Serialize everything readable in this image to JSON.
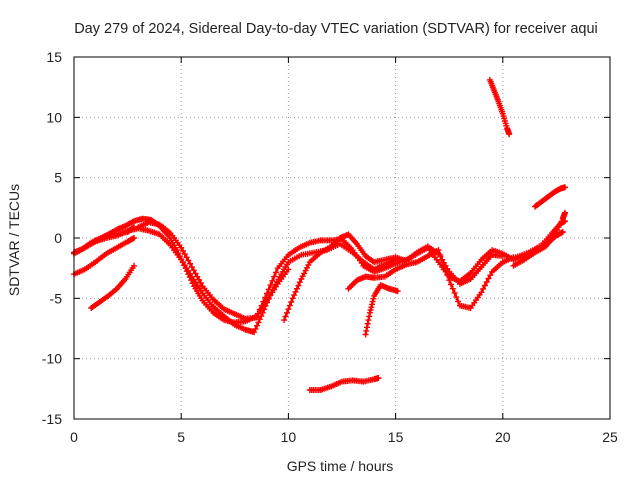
{
  "chart_data": {
    "type": "scatter",
    "title": "Day 279 of 2024, Sidereal Day-to-day VTEC variation (SDTVAR) for receiver aqui",
    "xlabel": "GPS time / hours",
    "ylabel": "SDTVAR / TECUs",
    "xlim": [
      0,
      25
    ],
    "ylim": [
      -15,
      15
    ],
    "xticks": [
      0,
      5,
      10,
      15,
      20,
      25
    ],
    "yticks": [
      -15,
      -10,
      -5,
      0,
      5,
      10,
      15
    ],
    "xtick_labels": [
      "0",
      "5",
      "10",
      "15",
      "20",
      "25"
    ],
    "ytick_labels": [
      "-15",
      "-10",
      "-5",
      "0",
      "5",
      "10",
      "15"
    ],
    "grid": true,
    "marker": "+",
    "series_color": "#ff0000",
    "series": [
      {
        "name": "arc1",
        "points": [
          [
            0,
            -1.2
          ],
          [
            0.4,
            -0.9
          ],
          [
            0.8,
            -0.4
          ],
          [
            1.2,
            -0.1
          ],
          [
            1.6,
            0.3
          ],
          [
            2.0,
            0.7
          ],
          [
            2.4,
            1.0
          ],
          [
            2.8,
            1.4
          ],
          [
            3.2,
            1.6
          ],
          [
            3.6,
            1.5
          ],
          [
            4.0,
            1.0
          ],
          [
            4.4,
            0.2
          ],
          [
            4.8,
            -1.0
          ],
          [
            5.2,
            -2.5
          ],
          [
            5.6,
            -4.0
          ],
          [
            6.0,
            -5.2
          ],
          [
            6.5,
            -6.2
          ],
          [
            7.0,
            -6.8
          ],
          [
            7.5,
            -7.0
          ],
          [
            8.0,
            -6.9
          ],
          [
            8.5,
            -6.5
          ],
          [
            9.0,
            -5.2
          ],
          [
            9.5,
            -3.8
          ],
          [
            10.0,
            -2.6
          ]
        ]
      },
      {
        "name": "arc2",
        "points": [
          [
            0,
            -1.3
          ],
          [
            0.5,
            -0.8
          ],
          [
            1.0,
            -0.3
          ],
          [
            1.5,
            0.0
          ],
          [
            2.0,
            0.2
          ],
          [
            2.5,
            0.6
          ],
          [
            3.0,
            0.8
          ],
          [
            3.5,
            0.6
          ],
          [
            4.0,
            0.3
          ],
          [
            4.5,
            -0.6
          ],
          [
            5.0,
            -1.8
          ],
          [
            5.5,
            -3.2
          ],
          [
            6.0,
            -4.6
          ],
          [
            6.5,
            -5.7
          ],
          [
            7.0,
            -6.5
          ],
          [
            7.5,
            -7.2
          ],
          [
            8.0,
            -7.6
          ],
          [
            8.4,
            -7.8
          ],
          [
            8.8,
            -6.2
          ],
          [
            9.2,
            -4.5
          ],
          [
            9.6,
            -3.2
          ],
          [
            10.0,
            -2.0
          ],
          [
            10.6,
            -1.4
          ],
          [
            11.2,
            -1.2
          ],
          [
            11.8,
            -1.0
          ],
          [
            12.4,
            -0.5
          ],
          [
            13.0,
            -1.2
          ],
          [
            13.5,
            -2.0
          ],
          [
            14.0,
            -2.6
          ],
          [
            14.5,
            -2.2
          ],
          [
            15.0,
            -1.8
          ]
        ]
      },
      {
        "name": "arc3",
        "points": [
          [
            0.6,
            -0.7
          ],
          [
            1.0,
            -0.2
          ],
          [
            1.5,
            0.2
          ],
          [
            2.0,
            0.3
          ],
          [
            2.5,
            0.5
          ],
          [
            2.8,
            0.9
          ]
        ]
      },
      {
        "name": "arc4",
        "points": [
          [
            0,
            -3.0
          ],
          [
            0.5,
            -2.6
          ],
          [
            1.0,
            -2.0
          ],
          [
            1.5,
            -1.3
          ],
          [
            2.0,
            -0.8
          ],
          [
            2.5,
            -0.3
          ],
          [
            2.8,
            0.0
          ]
        ]
      },
      {
        "name": "arc5",
        "points": [
          [
            0.8,
            -5.8
          ],
          [
            1.2,
            -5.3
          ],
          [
            1.6,
            -4.8
          ],
          [
            2.0,
            -4.2
          ],
          [
            2.4,
            -3.4
          ],
          [
            2.8,
            -2.3
          ]
        ]
      },
      {
        "name": "arc6",
        "points": [
          [
            3.0,
            0.9
          ],
          [
            3.5,
            1.3
          ],
          [
            4.0,
            1.1
          ],
          [
            4.5,
            0.4
          ],
          [
            5.0,
            -0.8
          ],
          [
            5.5,
            -2.4
          ],
          [
            6.0,
            -4.0
          ],
          [
            6.5,
            -5.1
          ],
          [
            7.0,
            -5.9
          ],
          [
            7.5,
            -6.3
          ],
          [
            8.0,
            -6.7
          ],
          [
            8.5,
            -6.6
          ],
          [
            9.0,
            -4.6
          ],
          [
            9.5,
            -2.5
          ],
          [
            10.0,
            -1.4
          ],
          [
            10.5,
            -0.8
          ],
          [
            11.0,
            -0.4
          ],
          [
            11.5,
            -0.2
          ],
          [
            12.0,
            -0.2
          ],
          [
            12.5,
            -0.1
          ],
          [
            13.0,
            -1.0
          ],
          [
            13.5,
            -2.3
          ],
          [
            14.0,
            -2.8
          ],
          [
            14.5,
            -2.5
          ],
          [
            15.0,
            -2.1
          ],
          [
            15.5,
            -1.8
          ],
          [
            16.0,
            -1.3
          ],
          [
            16.5,
            -0.8
          ],
          [
            17.0,
            -2.0
          ],
          [
            17.5,
            -3.2
          ],
          [
            18.0,
            -3.6
          ],
          [
            18.5,
            -2.9
          ],
          [
            19.0,
            -1.8
          ],
          [
            19.5,
            -1.0
          ],
          [
            20.0,
            -1.3
          ],
          [
            20.5,
            -1.8
          ],
          [
            21.0,
            -1.5
          ],
          [
            21.5,
            -1.0
          ],
          [
            22.0,
            -0.6
          ],
          [
            22.5,
            0.2
          ],
          [
            22.8,
            0.5
          ]
        ]
      },
      {
        "name": "arc7",
        "points": [
          [
            9.8,
            -6.8
          ],
          [
            10.2,
            -5.0
          ],
          [
            10.6,
            -3.4
          ],
          [
            11.0,
            -2.0
          ],
          [
            11.5,
            -1.2
          ],
          [
            12.0,
            -0.7
          ],
          [
            12.4,
            0.0
          ],
          [
            12.8,
            0.3
          ],
          [
            13.2,
            -0.5
          ],
          [
            13.6,
            -1.5
          ],
          [
            14.0,
            -2.0
          ],
          [
            14.5,
            -1.8
          ],
          [
            15.0,
            -1.6
          ],
          [
            15.5,
            -1.9
          ],
          [
            16.0,
            -1.2
          ],
          [
            16.5,
            -0.7
          ],
          [
            17.0,
            -1.3
          ],
          [
            17.5,
            -2.8
          ],
          [
            18.0,
            -3.8
          ],
          [
            18.5,
            -3.4
          ],
          [
            19.0,
            -2.4
          ],
          [
            19.5,
            -1.4
          ],
          [
            20.0,
            -1.5
          ]
        ]
      },
      {
        "name": "arc8",
        "points": [
          [
            12.8,
            -4.2
          ],
          [
            13.2,
            -3.5
          ],
          [
            13.6,
            -3.2
          ],
          [
            14.0,
            -3.3
          ],
          [
            14.5,
            -3.2
          ],
          [
            15.0,
            -2.6
          ],
          [
            15.5,
            -2.2
          ],
          [
            16.0,
            -2.0
          ],
          [
            16.5,
            -1.5
          ],
          [
            17.0,
            -1.0
          ],
          [
            17.5,
            -3.5
          ],
          [
            18.0,
            -5.6
          ],
          [
            18.5,
            -5.8
          ],
          [
            19.0,
            -4.5
          ],
          [
            19.5,
            -2.8
          ],
          [
            20.0,
            -2.0
          ],
          [
            20.5,
            -1.6
          ]
        ]
      },
      {
        "name": "arc9",
        "points": [
          [
            13.6,
            -8.0
          ],
          [
            13.8,
            -6.2
          ],
          [
            14.0,
            -4.8
          ],
          [
            14.3,
            -3.9
          ],
          [
            14.7,
            -4.2
          ],
          [
            15.1,
            -4.4
          ]
        ]
      },
      {
        "name": "arc10",
        "points": [
          [
            11.0,
            -12.6
          ],
          [
            11.5,
            -12.6
          ],
          [
            12.0,
            -12.3
          ],
          [
            12.5,
            -11.9
          ],
          [
            13.0,
            -11.8
          ],
          [
            13.5,
            -11.9
          ],
          [
            14.0,
            -11.7
          ],
          [
            14.2,
            -11.6
          ]
        ]
      },
      {
        "name": "arc11",
        "points": [
          [
            19.4,
            13.1
          ],
          [
            19.6,
            12.2
          ],
          [
            19.8,
            11.3
          ],
          [
            20.0,
            10.3
          ],
          [
            20.2,
            9.1
          ],
          [
            20.3,
            8.6
          ]
        ]
      },
      {
        "name": "arc12",
        "points": [
          [
            21.5,
            2.6
          ],
          [
            21.8,
            3.0
          ],
          [
            22.1,
            3.4
          ],
          [
            22.4,
            3.8
          ],
          [
            22.7,
            4.1
          ],
          [
            22.9,
            4.2
          ]
        ]
      },
      {
        "name": "arc13",
        "points": [
          [
            20.5,
            -2.3
          ],
          [
            21.0,
            -1.8
          ],
          [
            21.5,
            -1.2
          ],
          [
            22.0,
            -0.7
          ],
          [
            22.4,
            0.2
          ],
          [
            22.8,
            1.6
          ],
          [
            22.9,
            2.1
          ]
        ]
      },
      {
        "name": "arc14",
        "points": [
          [
            20.6,
            -1.6
          ],
          [
            21.2,
            -1.2
          ],
          [
            21.8,
            -0.6
          ],
          [
            22.3,
            0.4
          ],
          [
            22.7,
            1.2
          ],
          [
            22.9,
            1.4
          ]
        ]
      }
    ]
  }
}
